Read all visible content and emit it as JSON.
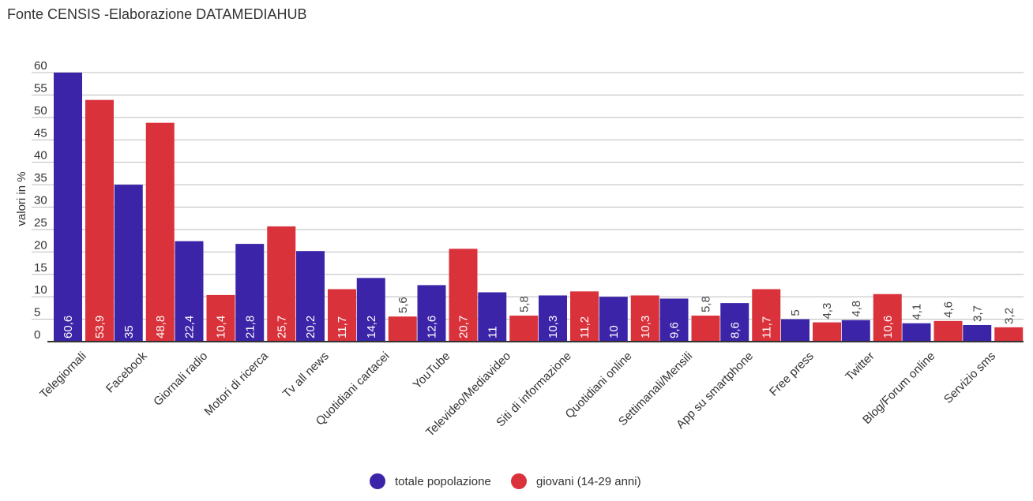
{
  "title": "Fonte CENSIS -Elaborazione DATAMEDIAHUB",
  "chart_data": {
    "type": "bar",
    "ylabel": "valori in %",
    "xlabel": "",
    "ylim": [
      0,
      60
    ],
    "yticks": [
      0,
      5,
      10,
      15,
      20,
      25,
      30,
      35,
      40,
      45,
      50,
      55,
      60
    ],
    "grid": true,
    "legend_position": "bottom",
    "categories": [
      "Telegiornali",
      "Facebook",
      "Giornali radio",
      "Motori di ricerca",
      "Tv all news",
      "Quotidiani cartacei",
      "YouTube",
      "Televideo/Mediavideo",
      "Siti di informazione",
      "Quotidiani online",
      "Settimanali/Mensili",
      "App su smartphone",
      "Free press",
      "Twitter",
      "Blog/Forum online",
      "Servizio sms"
    ],
    "series": [
      {
        "name": "totale popolazione",
        "color": "#3b24a8",
        "values": [
          60.6,
          35,
          22.4,
          21.8,
          20.2,
          14.2,
          12.6,
          11,
          10.3,
          10,
          9.6,
          8.6,
          5,
          4.8,
          4.1,
          3.7
        ],
        "labels": [
          "60,6",
          "35",
          "22,4",
          "21,8",
          "20,2",
          "14,2",
          "12,6",
          "11",
          "10,3",
          "10",
          "9,6",
          "8,6",
          "5",
          "4,8",
          "4,1",
          "3,7"
        ]
      },
      {
        "name": "giovani (14-29 anni)",
        "color": "#d9323b",
        "values": [
          53.9,
          48.8,
          10.4,
          25.7,
          11.7,
          5.6,
          20.7,
          5.8,
          11.2,
          10.3,
          5.8,
          11.7,
          4.3,
          10.6,
          4.6,
          3.2
        ],
        "labels": [
          "53,9",
          "48,8",
          "10,4",
          "25,7",
          "11,7",
          "5,6",
          "20,7",
          "5,8",
          "11,2",
          "10,3",
          "5,8",
          "11,7",
          "4,3",
          "10,6",
          "4,6",
          "3,2"
        ]
      }
    ]
  }
}
